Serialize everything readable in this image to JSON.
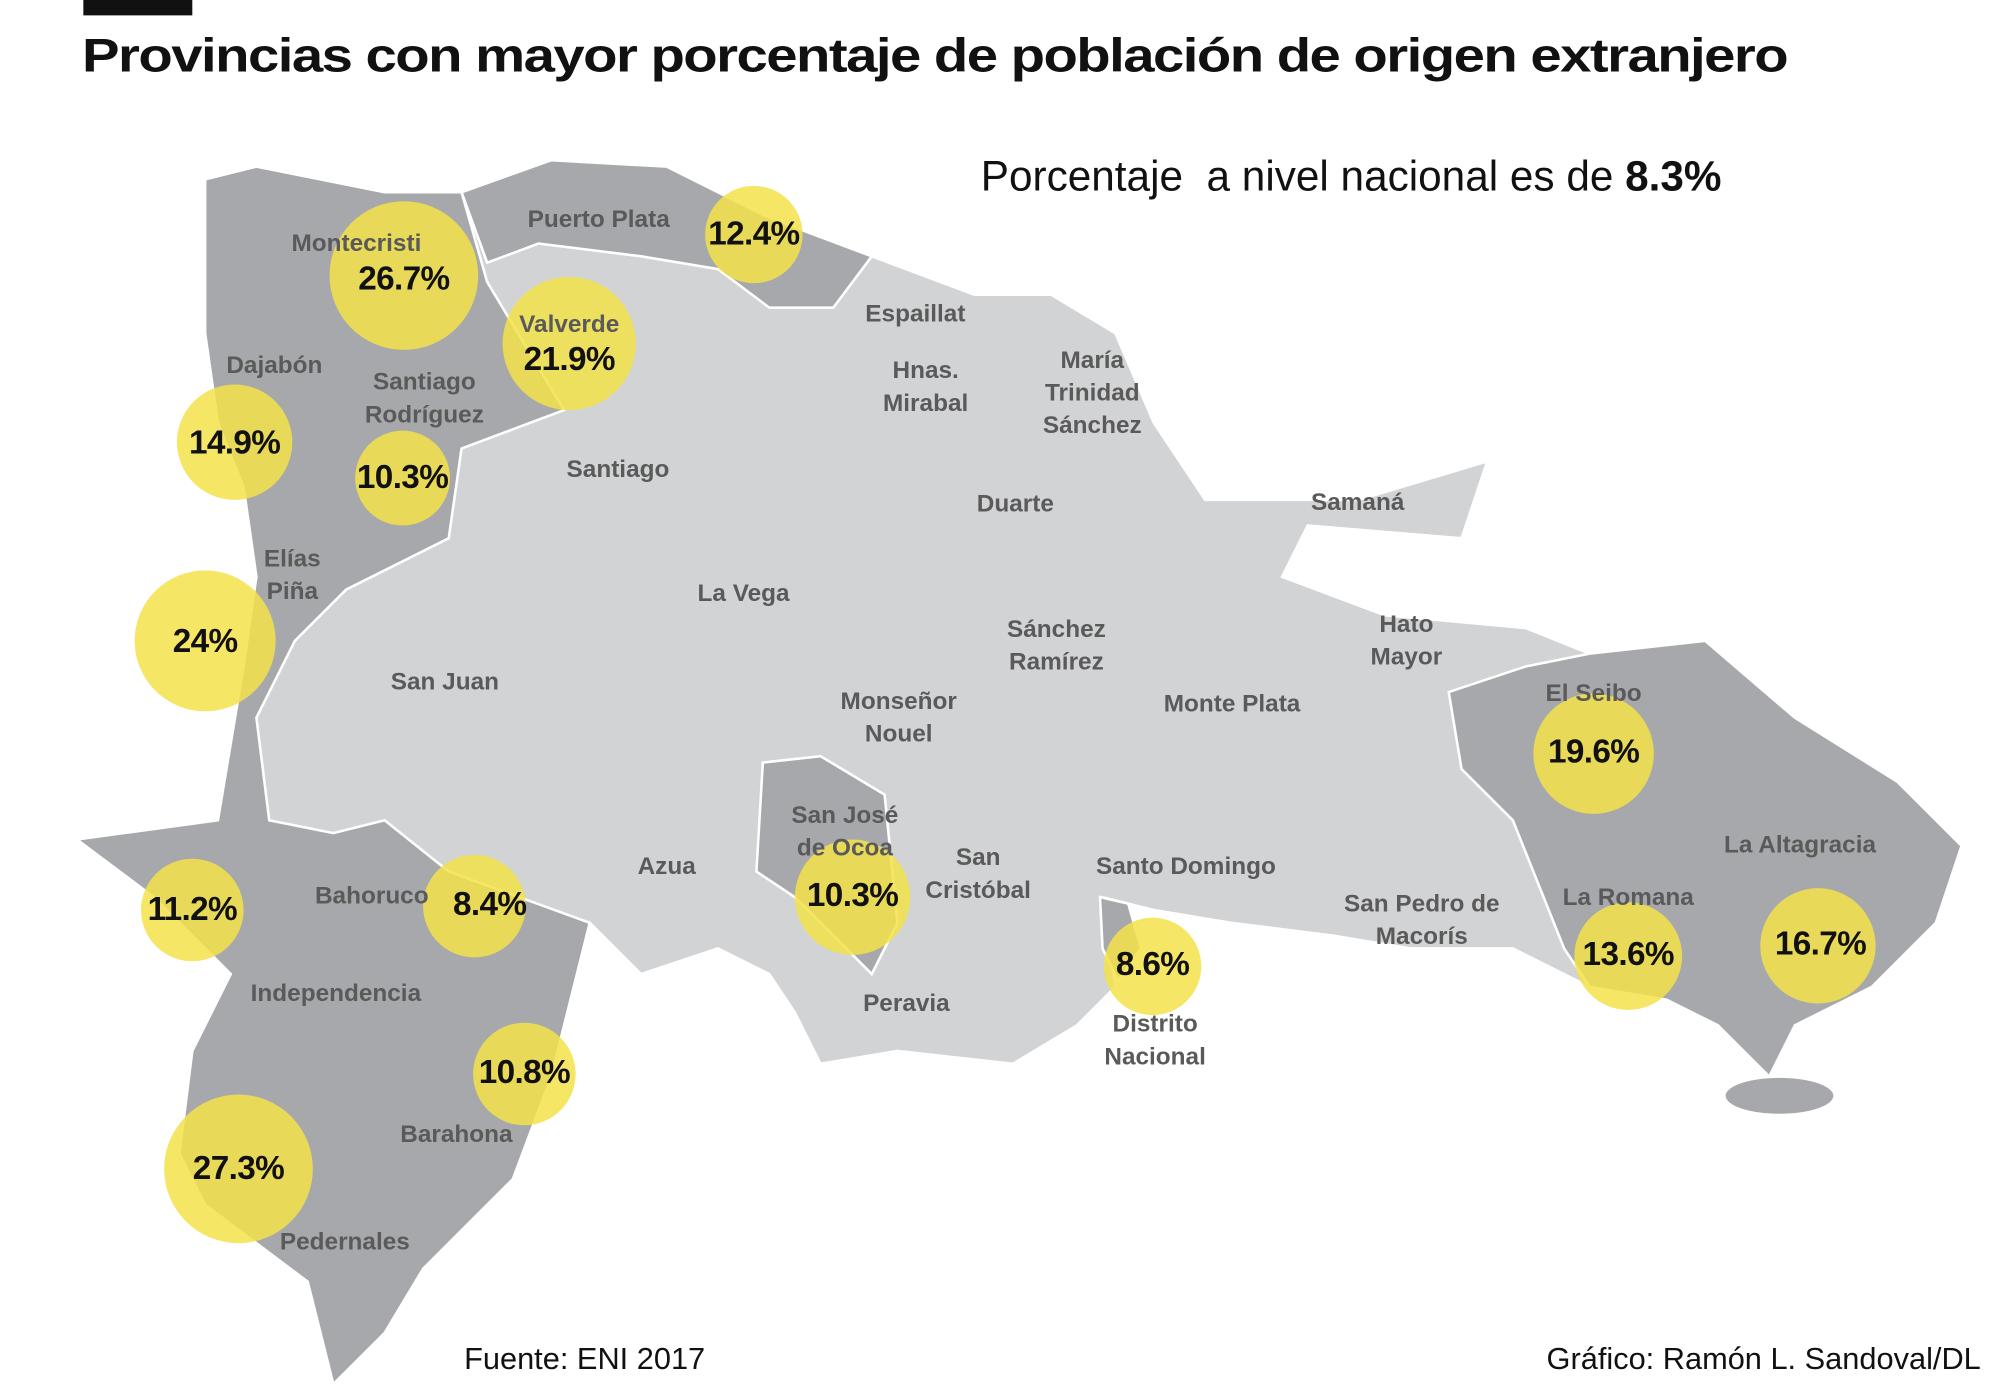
{
  "header": {
    "title": "Provincias con mayor porcentaje de población de origen extranjero",
    "subtitle": "Porcentaje  a nivel nacional es de ",
    "national_value": "8.3%"
  },
  "provinces": [
    {
      "label": [
        "Montecristi"
      ],
      "value": "26.7%"
    },
    {
      "label": [
        "Puerto Plata"
      ],
      "value": "12.4%"
    },
    {
      "label": [
        "Valverde"
      ],
      "value": "21.9%"
    },
    {
      "label": [
        "Dajabón"
      ],
      "value": "14.9%"
    },
    {
      "label": [
        "Santiago",
        "Rodríguez"
      ],
      "value": "10.3%"
    },
    {
      "label": [
        "Elías",
        "Piña"
      ],
      "value": "24%"
    },
    {
      "label": [
        "Independencia"
      ],
      "value": "11.2%"
    },
    {
      "label": [
        "Bahoruco"
      ],
      "value": "8.4%"
    },
    {
      "label": [
        "Barahona"
      ],
      "value": "10.8%"
    },
    {
      "label": [
        "Pedernales"
      ],
      "value": "27.3%"
    },
    {
      "label": [
        "San José",
        "de Ocoa"
      ],
      "value": "10.3%"
    },
    {
      "label": [
        "Distrito",
        "Nacional"
      ],
      "value": "8.6%"
    },
    {
      "label": [
        "El Seibo"
      ],
      "value": "19.6%"
    },
    {
      "label": [
        "La Romana"
      ],
      "value": "13.6%"
    },
    {
      "label": [
        "La Altagracia"
      ],
      "value": "16.7%"
    }
  ],
  "other_provinces": [
    {
      "label": [
        "Santiago"
      ]
    },
    {
      "label": [
        "Espaillat"
      ]
    },
    {
      "label": [
        "Hnas.",
        "Mirabal"
      ]
    },
    {
      "label": [
        "María",
        "Trinidad",
        "Sánchez"
      ]
    },
    {
      "label": [
        "Duarte"
      ]
    },
    {
      "label": [
        "Samaná"
      ]
    },
    {
      "label": [
        "La Vega"
      ]
    },
    {
      "label": [
        "Sánchez",
        "Ramírez"
      ]
    },
    {
      "label": [
        "Hato",
        "Mayor"
      ]
    },
    {
      "label": [
        "San Juan"
      ]
    },
    {
      "label": [
        "Monseñor",
        "Nouel"
      ]
    },
    {
      "label": [
        "Monte Plata"
      ]
    },
    {
      "label": [
        "Azua"
      ]
    },
    {
      "label": [
        "San",
        "Cristóbal"
      ]
    },
    {
      "label": [
        "Santo Domingo"
      ]
    },
    {
      "label": [
        "San Pedro de",
        "Macorís"
      ]
    },
    {
      "label": [
        "Peravia"
      ]
    }
  ],
  "footer": {
    "source": "Fuente: ENI 2017",
    "credit": "Gráfico: Ramón L. Sandoval/DL"
  }
}
